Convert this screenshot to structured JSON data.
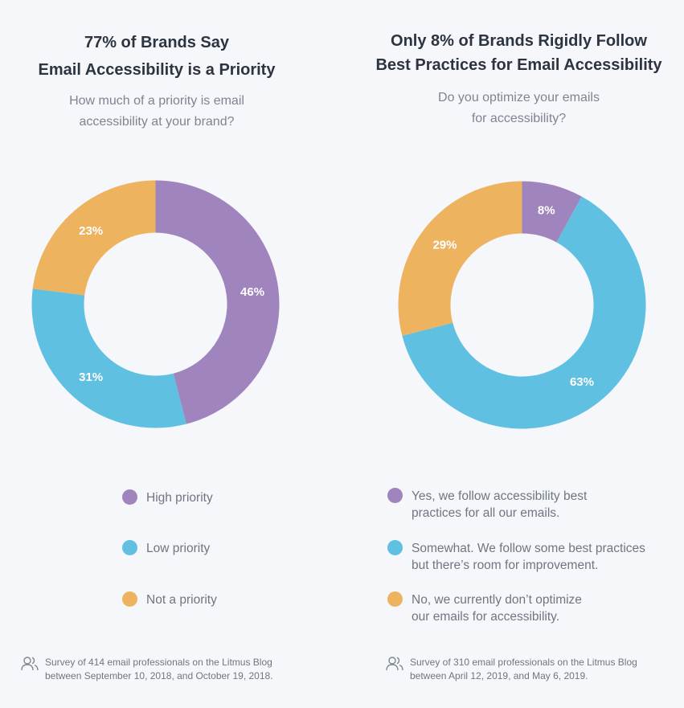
{
  "colors": {
    "purple": "#a084bd",
    "blue": "#60c0e2",
    "orange": "#eeb35f"
  },
  "left": {
    "title": [
      "77% of Brands Say",
      "Email Accessibility is a Priority"
    ],
    "question": [
      "How much of a priority is email",
      "accessibility at your brand?"
    ],
    "legend": [
      {
        "lines": [
          "High priority"
        ],
        "color": "#a084bd"
      },
      {
        "lines": [
          "Low priority"
        ],
        "color": "#60c0e2"
      },
      {
        "lines": [
          "Not a priority"
        ],
        "color": "#eeb35f"
      }
    ],
    "footnote": [
      "Survey of 414 email professionals on the Litmus Blog",
      "between September 10, 2018, and October 19, 2018."
    ],
    "footnote_icon": "people-icon"
  },
  "right": {
    "title": [
      "Only 8% of Brands Rigidly Follow",
      "Best Practices for Email Accessibility"
    ],
    "question": [
      "Do you optimize your emails",
      "for accessibility?"
    ],
    "legend": [
      {
        "lines": [
          "Yes, we follow accessibility best",
          "practices for all our emails."
        ],
        "color": "#a084bd"
      },
      {
        "lines": [
          "Somewhat. We follow some best practices",
          "but there’s room for improvement."
        ],
        "color": "#60c0e2"
      },
      {
        "lines": [
          "No, we currently don’t optimize",
          "our emails for accessibility."
        ],
        "color": "#eeb35f"
      }
    ],
    "footnote": [
      "Survey of 310 email professionals on the Litmus Blog",
      "between April 12, 2019, and May 6, 2019."
    ],
    "footnote_icon": "people-icon"
  },
  "chart_data": [
    {
      "type": "pie",
      "donut": true,
      "categories": [
        "High priority",
        "Low priority",
        "Not a priority"
      ],
      "values": [
        46,
        31,
        23
      ],
      "labels": [
        "46%",
        "31%",
        "23%"
      ],
      "colors": [
        "#a084bd",
        "#60c0e2",
        "#eeb35f"
      ],
      "title": "77% of Brands Say Email Accessibility is a Priority"
    },
    {
      "type": "pie",
      "donut": true,
      "categories": [
        "Yes, we follow accessibility best practices for all our emails.",
        "Somewhat. We follow some best practices but there’s room for improvement.",
        "No, we currently don’t optimize our emails for accessibility."
      ],
      "values": [
        8,
        63,
        29
      ],
      "labels": [
        "8%",
        "63%",
        "29%"
      ],
      "colors": [
        "#a084bd",
        "#60c0e2",
        "#eeb35f"
      ],
      "title": "Only 8% of Brands Rigidly Follow Best Practices for Email Accessibility"
    }
  ]
}
